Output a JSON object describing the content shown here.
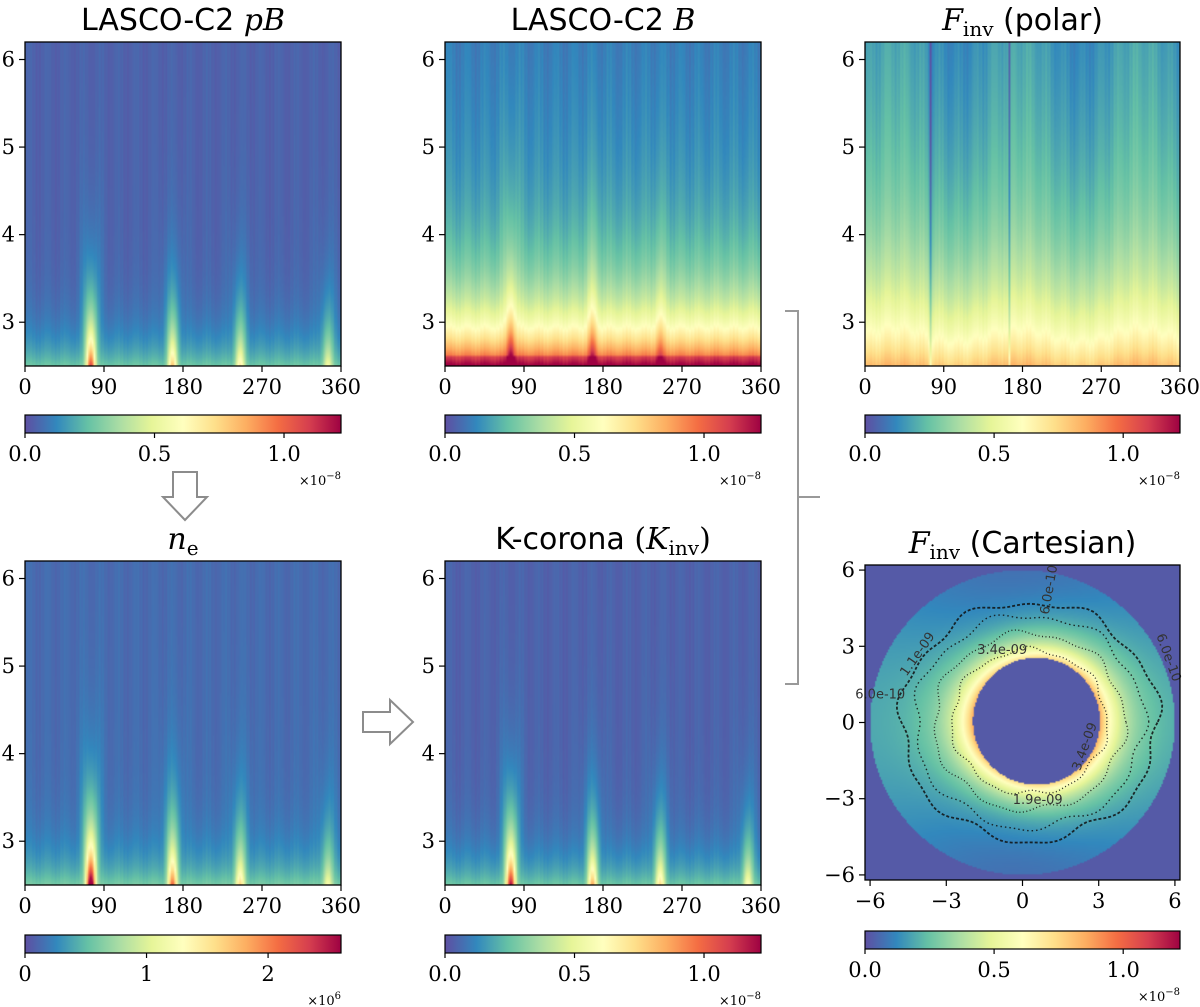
{
  "colorscale": {
    "name": "Spectral_r",
    "stops": [
      "#5e4fa2",
      "#3288bd",
      "#66c2a5",
      "#abdda4",
      "#e6f598",
      "#ffffbf",
      "#fee08b",
      "#fdae61",
      "#f46d43",
      "#d53e4f",
      "#9e0142"
    ]
  },
  "chart_data": [
    {
      "id": "pB",
      "type": "heatmap",
      "title_text": "LASCO-C2 ",
      "title_math": "pB",
      "x_ticks": [
        0,
        90,
        180,
        270,
        360
      ],
      "y_ticks": [
        3,
        4,
        5,
        6
      ],
      "xlim": [
        0,
        360
      ],
      "ylim": [
        2.5,
        6.2
      ],
      "colorbar": {
        "ticks": [
          "0.0",
          "0.5",
          "1.0"
        ],
        "tick_values": [
          0,
          0.5,
          1.0
        ],
        "vmax": 1.22,
        "exponent": "×10",
        "exponent_power": "−8"
      },
      "ridges_deg": [
        75,
        168,
        245,
        345
      ],
      "ridge_strength": [
        0.7,
        0.45,
        0.35,
        0.25
      ]
    },
    {
      "id": "B",
      "type": "heatmap",
      "title_text": "LASCO-C2 ",
      "title_math": "B",
      "x_ticks": [
        0,
        90,
        180,
        270,
        360
      ],
      "y_ticks": [
        3,
        4,
        5,
        6
      ],
      "xlim": [
        0,
        360
      ],
      "ylim": [
        2.5,
        6.2
      ],
      "colorbar": {
        "ticks": [
          "0.0",
          "0.5",
          "1.0"
        ],
        "tick_values": [
          0,
          0.5,
          1.0
        ],
        "vmax": 1.22,
        "exponent": "×10",
        "exponent_power": "−8"
      },
      "ridges_deg": [
        75,
        168,
        245
      ],
      "ridge_strength": [
        0.85,
        0.6,
        0.4
      ]
    },
    {
      "id": "Fpolar",
      "type": "heatmap",
      "title_math": "F",
      "title_sub": "inv",
      "title_text": " (polar)",
      "x_ticks": [
        0,
        90,
        180,
        270,
        360
      ],
      "y_ticks": [
        3,
        4,
        5,
        6
      ],
      "xlim": [
        0,
        360
      ],
      "ylim": [
        2.5,
        6.2
      ],
      "colorbar": {
        "ticks": [
          "0.0",
          "0.5",
          "1.0"
        ],
        "tick_values": [
          0,
          0.5,
          1.0
        ],
        "vmax": 1.22,
        "exponent": "×10",
        "exponent_power": "−8"
      },
      "dark_lines_deg": [
        75,
        165
      ]
    },
    {
      "id": "ne",
      "type": "heatmap",
      "title_math": "n",
      "title_sub": "e",
      "x_ticks": [
        0,
        90,
        180,
        270,
        360
      ],
      "y_ticks": [
        3,
        4,
        5,
        6
      ],
      "xlim": [
        0,
        360
      ],
      "ylim": [
        2.5,
        6.2
      ],
      "colorbar": {
        "ticks": [
          "0",
          "1",
          "2"
        ],
        "tick_values": [
          0,
          1,
          2
        ],
        "vmax": 2.6,
        "exponent": "×10",
        "exponent_power": "6"
      },
      "ridges_deg": [
        75,
        168,
        245,
        345
      ],
      "ridge_strength": [
        0.95,
        0.6,
        0.4,
        0.25
      ]
    },
    {
      "id": "K",
      "type": "heatmap",
      "title_text": "K-corona ",
      "title_math": "K",
      "title_sub": "inv",
      "title_paren": true,
      "x_ticks": [
        0,
        90,
        180,
        270,
        360
      ],
      "y_ticks": [
        3,
        4,
        5,
        6
      ],
      "xlim": [
        0,
        360
      ],
      "ylim": [
        2.5,
        6.2
      ],
      "colorbar": {
        "ticks": [
          "0.0",
          "0.5",
          "1.0"
        ],
        "tick_values": [
          0,
          0.5,
          1.0
        ],
        "vmax": 1.22,
        "exponent": "×10",
        "exponent_power": "−8"
      },
      "ridges_deg": [
        75,
        168,
        245,
        345
      ],
      "ridge_strength": [
        0.8,
        0.5,
        0.4,
        0.3
      ]
    },
    {
      "id": "Fcart",
      "type": "heatmap",
      "title_math": "F",
      "title_sub": "inv",
      "title_text": " (Cartesian)",
      "x_ticks": [
        -6,
        -3,
        0,
        3,
        6
      ],
      "y_ticks": [
        -6,
        -3,
        0,
        3,
        6
      ],
      "xlim": [
        -6.2,
        6.2
      ],
      "ylim": [
        -6.2,
        6.2
      ],
      "colorbar": {
        "ticks": [
          "0.0",
          "0.5",
          "1.0"
        ],
        "tick_values": [
          0,
          0.5,
          1.0
        ],
        "vmax": 1.22,
        "exponent": "×10",
        "exponent_power": "−8"
      },
      "inner_radius": 2.5,
      "outer_radius": 6.0,
      "occulter_center": [
        0.55,
        0.05
      ],
      "contours": [
        {
          "label": "6.0e-10",
          "radius": 5.05
        },
        {
          "label": "1.1e-09",
          "radius": 4.5
        },
        {
          "label": "1.9e-09",
          "radius": 3.75
        },
        {
          "label": "3.4e-09",
          "radius": 3.05
        }
      ],
      "contour_label_items": [
        {
          "text": "6.0e-10",
          "x": 1.2,
          "y": 5.2,
          "rot": -80
        },
        {
          "text": "6.0e-10",
          "x": 5.6,
          "y": 2.5,
          "rot": 70
        },
        {
          "text": "6.0e-10",
          "x": -5.6,
          "y": 0.95,
          "rot": 0
        },
        {
          "text": "1.1e-09",
          "x": -4.0,
          "y": 2.6,
          "rot": -55
        },
        {
          "text": "3.4e-09",
          "x": -0.8,
          "y": 2.7,
          "rot": 0
        },
        {
          "text": "3.4e-09",
          "x": 2.6,
          "y": -1.0,
          "rot": -70
        },
        {
          "text": "1.9e-09",
          "x": 0.6,
          "y": -3.2,
          "rot": 0
        }
      ]
    }
  ]
}
